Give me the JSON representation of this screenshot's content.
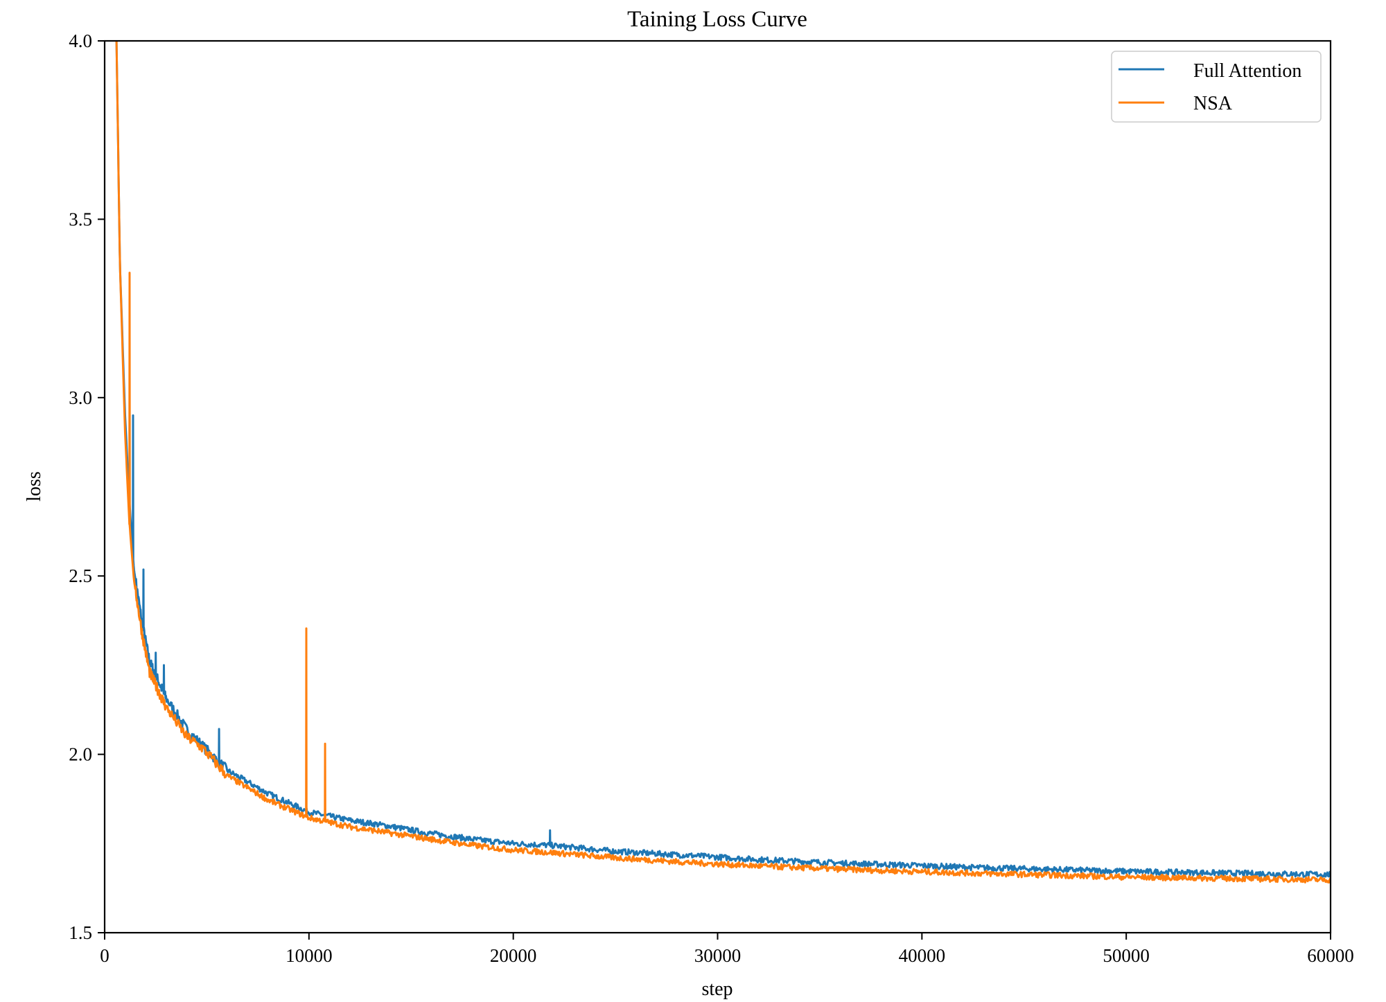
{
  "chart_data": {
    "type": "line",
    "title": "Taining Loss Curve",
    "xlabel": "step",
    "ylabel": "loss",
    "xlim": [
      0,
      60000
    ],
    "ylim": [
      1.5,
      4.0
    ],
    "grid": false,
    "legend_position": "upper right",
    "x_ticks": [
      0,
      10000,
      20000,
      30000,
      40000,
      50000,
      60000
    ],
    "x_tick_labels": [
      "0",
      "10000",
      "20000",
      "30000",
      "40000",
      "50000",
      "60000"
    ],
    "y_ticks": [
      1.5,
      2.0,
      2.5,
      3.0,
      3.5,
      4.0
    ],
    "y_tick_labels": [
      "1.5",
      "2.0",
      "2.5",
      "3.0",
      "3.5",
      "4.0"
    ],
    "series": [
      {
        "name": "Full Attention",
        "color": "#1f77b4",
        "x": [
          580,
          750,
          1000,
          1200,
          1430,
          1830,
          2200,
          3000,
          4000,
          4800,
          6000,
          8000,
          10000,
          12000,
          13900,
          15750,
          18000,
          20000,
          21800,
          25000,
          28800,
          32000,
          36000,
          40000,
          42400,
          46000,
          50000,
          55000,
          60000
        ],
        "values": [
          4.0,
          3.37,
          2.95,
          2.72,
          2.52,
          2.37,
          2.26,
          2.158,
          2.07,
          2.023,
          1.955,
          1.89,
          1.838,
          1.815,
          1.799,
          1.78,
          1.762,
          1.75,
          1.745,
          1.728,
          1.716,
          1.705,
          1.695,
          1.688,
          1.683,
          1.678,
          1.672,
          1.667,
          1.663
        ],
        "spikes": [
          {
            "x": 1390,
            "y": 2.95
          },
          {
            "x": 1900,
            "y": 2.518
          },
          {
            "x": 2500,
            "y": 2.285
          },
          {
            "x": 2900,
            "y": 2.25
          },
          {
            "x": 4700,
            "y": 2.034
          },
          {
            "x": 5600,
            "y": 2.071
          },
          {
            "x": 21800,
            "y": 1.787
          }
        ]
      },
      {
        "name": "NSA",
        "color": "#ff7f0e",
        "x": [
          580,
          750,
          1000,
          1200,
          1430,
          1830,
          2200,
          3000,
          4000,
          4800,
          6000,
          8000,
          10000,
          12000,
          13900,
          15750,
          18000,
          20000,
          21800,
          25000,
          28800,
          32000,
          36000,
          40000,
          42400,
          46000,
          50000,
          55000,
          60000
        ],
        "values": [
          4.0,
          3.37,
          2.9,
          2.66,
          2.49,
          2.34,
          2.23,
          2.133,
          2.05,
          2.017,
          1.94,
          1.872,
          1.822,
          1.797,
          1.78,
          1.764,
          1.745,
          1.732,
          1.725,
          1.71,
          1.696,
          1.687,
          1.678,
          1.671,
          1.667,
          1.662,
          1.656,
          1.652,
          1.648
        ],
        "spikes": [
          {
            "x": 1220,
            "y": 3.35
          },
          {
            "x": 9870,
            "y": 2.353
          },
          {
            "x": 10790,
            "y": 2.03
          }
        ]
      }
    ]
  }
}
